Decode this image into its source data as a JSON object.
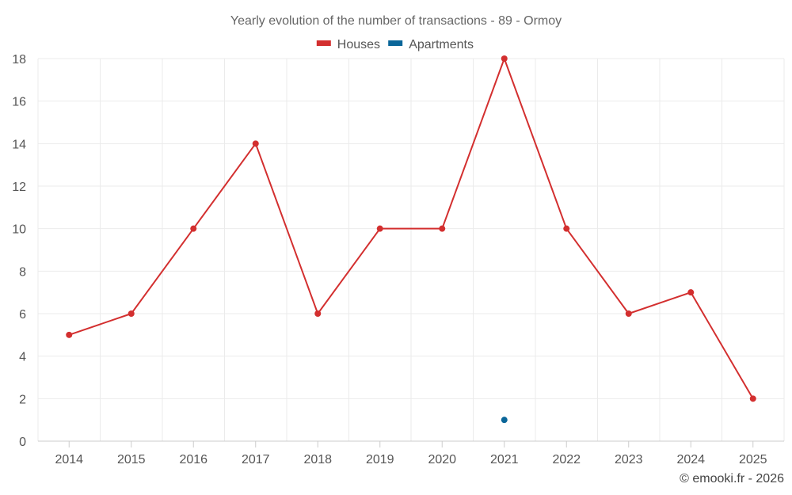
{
  "chart_data": {
    "type": "line",
    "title": "Yearly evolution of the number of transactions - 89 - Ormoy",
    "categories": [
      "2014",
      "2015",
      "2016",
      "2017",
      "2018",
      "2019",
      "2020",
      "2021",
      "2022",
      "2023",
      "2024",
      "2025"
    ],
    "ylim": [
      0,
      18
    ],
    "yticks": [
      0,
      2,
      4,
      6,
      8,
      10,
      12,
      14,
      16,
      18
    ],
    "grid": true,
    "legend_position": "top-center",
    "series": [
      {
        "name": "Houses",
        "color": "#d32f2f",
        "values": [
          5,
          6,
          10,
          14,
          6,
          10,
          10,
          18,
          10,
          6,
          7,
          2
        ]
      },
      {
        "name": "Apartments",
        "color": "#0a6699",
        "values": [
          null,
          null,
          null,
          null,
          null,
          null,
          null,
          1,
          null,
          null,
          null,
          null
        ]
      }
    ],
    "xlabel": "",
    "ylabel": ""
  },
  "credit": "© emooki.fr - 2026"
}
